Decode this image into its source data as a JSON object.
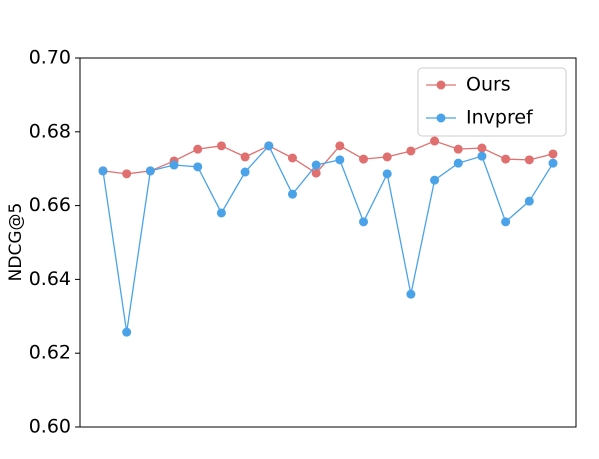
{
  "chart_data": {
    "type": "line",
    "ylabel": "NDCG@5",
    "categories": [
      null,
      null,
      null,
      null,
      null,
      null,
      null,
      null,
      null,
      null,
      null,
      null,
      null,
      null,
      null,
      null,
      null,
      null,
      null,
      null
    ],
    "series": [
      {
        "name": "Ours",
        "color": "#e07070",
        "values": [
          0.6694,
          0.6686,
          0.6694,
          0.6721,
          0.6753,
          0.6762,
          0.6732,
          0.6762,
          0.6729,
          0.6688,
          0.6762,
          0.6726,
          0.6732,
          0.6748,
          0.6775,
          0.6753,
          0.6756,
          0.6726,
          0.6724,
          0.674
        ]
      },
      {
        "name": "Invpref",
        "color": "#4aa3e8",
        "values": [
          0.6694,
          0.6257,
          0.6694,
          0.671,
          0.6705,
          0.658,
          0.6691,
          0.6762,
          0.6631,
          0.671,
          0.6724,
          0.6556,
          0.6686,
          0.636,
          0.6669,
          0.6715,
          0.6734,
          0.6556,
          0.6612,
          0.6715
        ]
      }
    ],
    "ylim": [
      0.6,
      0.7
    ],
    "yticks": [
      {
        "value": 0.6,
        "label": "0.60"
      },
      {
        "value": 0.62,
        "label": "0.62"
      },
      {
        "value": 0.64,
        "label": "0.64"
      },
      {
        "value": 0.66,
        "label": "0.66"
      },
      {
        "value": 0.68,
        "label": "0.68"
      },
      {
        "value": 0.7,
        "label": "0.70"
      }
    ],
    "legend": "upper right"
  }
}
